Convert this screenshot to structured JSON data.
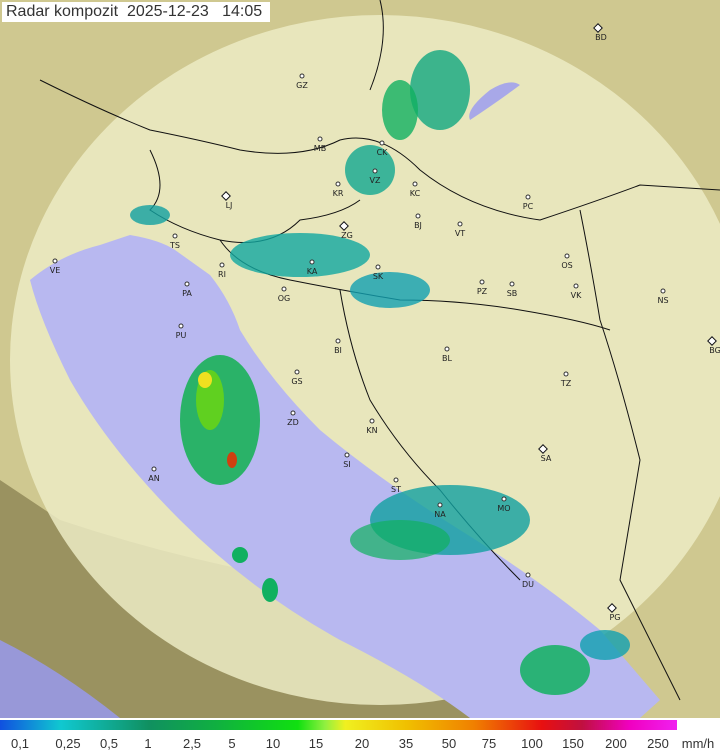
{
  "header": {
    "title": "Radar kompozit",
    "date": "2025-12-23",
    "time": "14:05"
  },
  "cities": [
    {
      "code": "BD",
      "capital": true
    },
    {
      "code": "GZ"
    },
    {
      "code": "MB"
    },
    {
      "code": "CK"
    },
    {
      "code": "VZ"
    },
    {
      "code": "KR"
    },
    {
      "code": "KC"
    },
    {
      "code": "LJ",
      "capital": true
    },
    {
      "code": "PC"
    },
    {
      "code": "TS"
    },
    {
      "code": "ZG",
      "capital": true
    },
    {
      "code": "BJ"
    },
    {
      "code": "VT"
    },
    {
      "code": "VE"
    },
    {
      "code": "RI"
    },
    {
      "code": "KA"
    },
    {
      "code": "SK"
    },
    {
      "code": "OS"
    },
    {
      "code": "PA"
    },
    {
      "code": "OG"
    },
    {
      "code": "PZ"
    },
    {
      "code": "SB"
    },
    {
      "code": "VK"
    },
    {
      "code": "NS"
    },
    {
      "code": "PU"
    },
    {
      "code": "BI"
    },
    {
      "code": "BL"
    },
    {
      "code": "BG",
      "capital": true
    },
    {
      "code": "GS"
    },
    {
      "code": "TZ"
    },
    {
      "code": "ZD"
    },
    {
      "code": "KN"
    },
    {
      "code": "SA",
      "capital": true
    },
    {
      "code": "SI"
    },
    {
      "code": "AN"
    },
    {
      "code": "ST"
    },
    {
      "code": "MO"
    },
    {
      "code": "NA"
    },
    {
      "code": "DU"
    },
    {
      "code": "PG",
      "capital": true
    }
  ],
  "legend": {
    "unit": "mm/h",
    "ticks": [
      "0,1",
      "0,25",
      "0,5",
      "1",
      "2,5",
      "5",
      "10",
      "15",
      "20",
      "35",
      "50",
      "75",
      "100",
      "150",
      "200",
      "250"
    ]
  },
  "colors": {
    "sea": "#b8b8f0",
    "land": "#e4e2a8",
    "coverage": "#f2f2d8",
    "rain_light": "#10a0a0",
    "rain_mid": "#10c040",
    "rain_heavy": "#f0e020"
  }
}
